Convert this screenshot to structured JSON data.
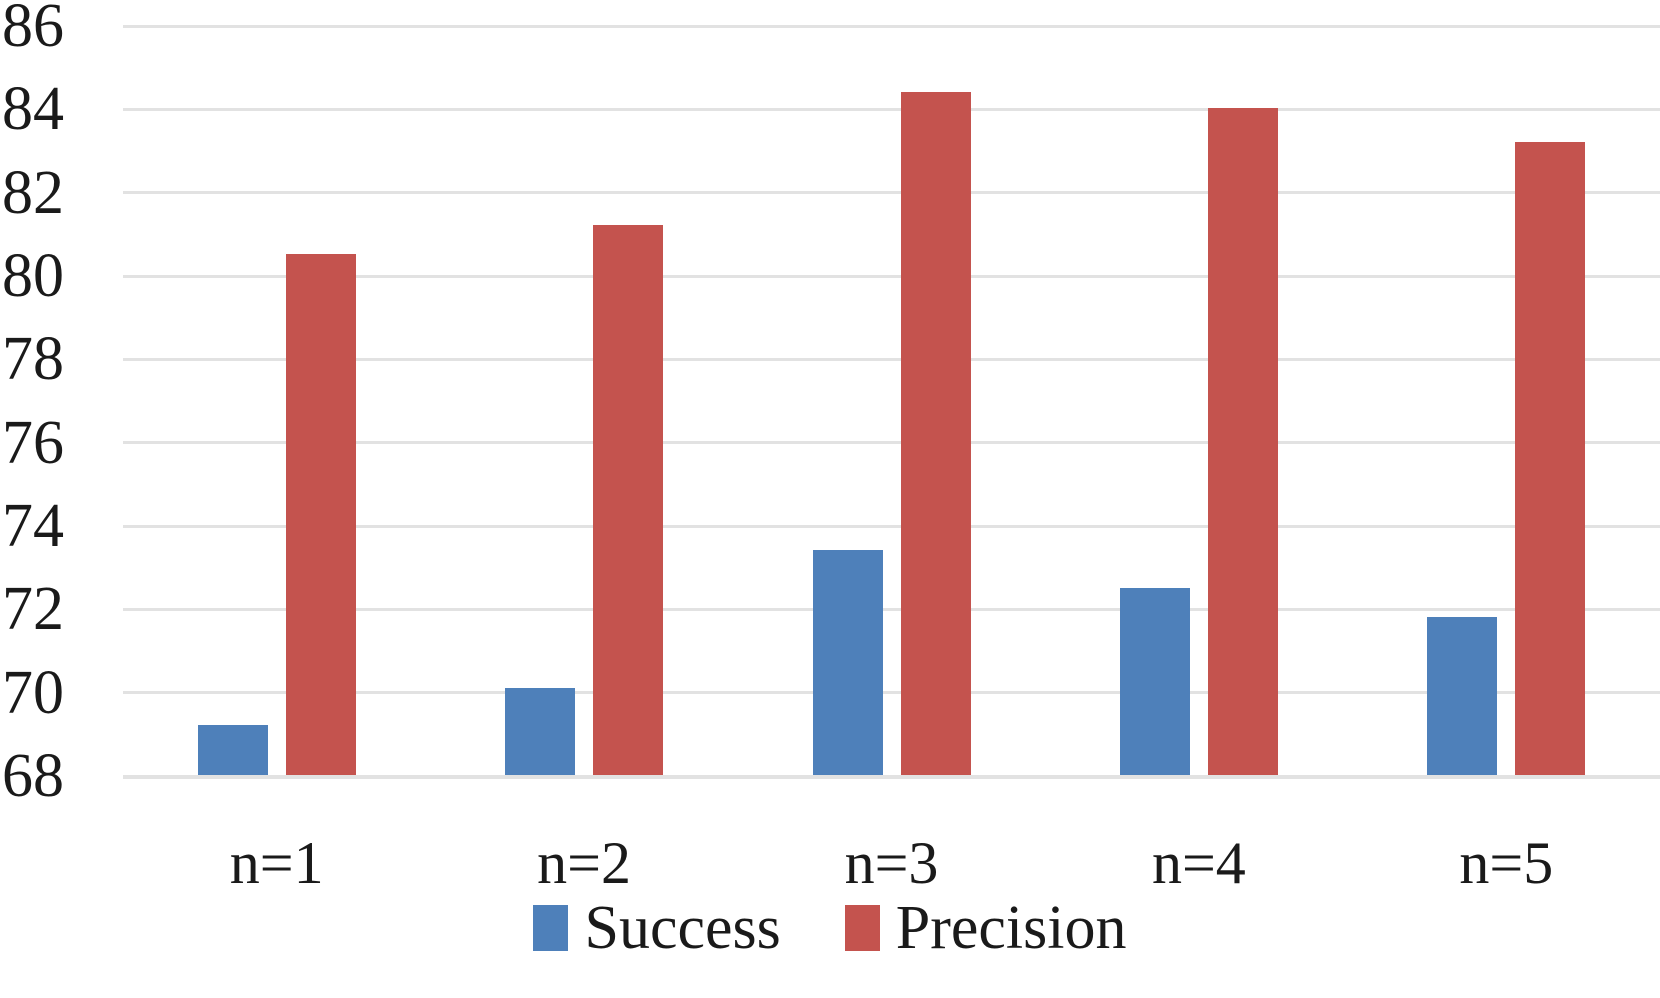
{
  "chart_data": {
    "type": "bar",
    "title": "",
    "xlabel": "",
    "ylabel": "",
    "categories": [
      "n=1",
      "n=2",
      "n=3",
      "n=4",
      "n=5"
    ],
    "series": [
      {
        "name": "Success",
        "color": "#4e80ba",
        "values": [
          69.2,
          70.1,
          73.4,
          72.5,
          71.8
        ]
      },
      {
        "name": "Precision",
        "color": "#c4534e",
        "values": [
          80.5,
          81.2,
          84.4,
          84.0,
          83.2
        ]
      }
    ],
    "ylim": [
      68,
      86
    ],
    "ytick_step": 2,
    "ytick_labels": [
      "68",
      "70",
      "72",
      "74",
      "76",
      "78",
      "80",
      "82",
      "84",
      "86"
    ],
    "grid": true,
    "gridline_color": "#e2e2e2",
    "legend_position": "bottom"
  }
}
